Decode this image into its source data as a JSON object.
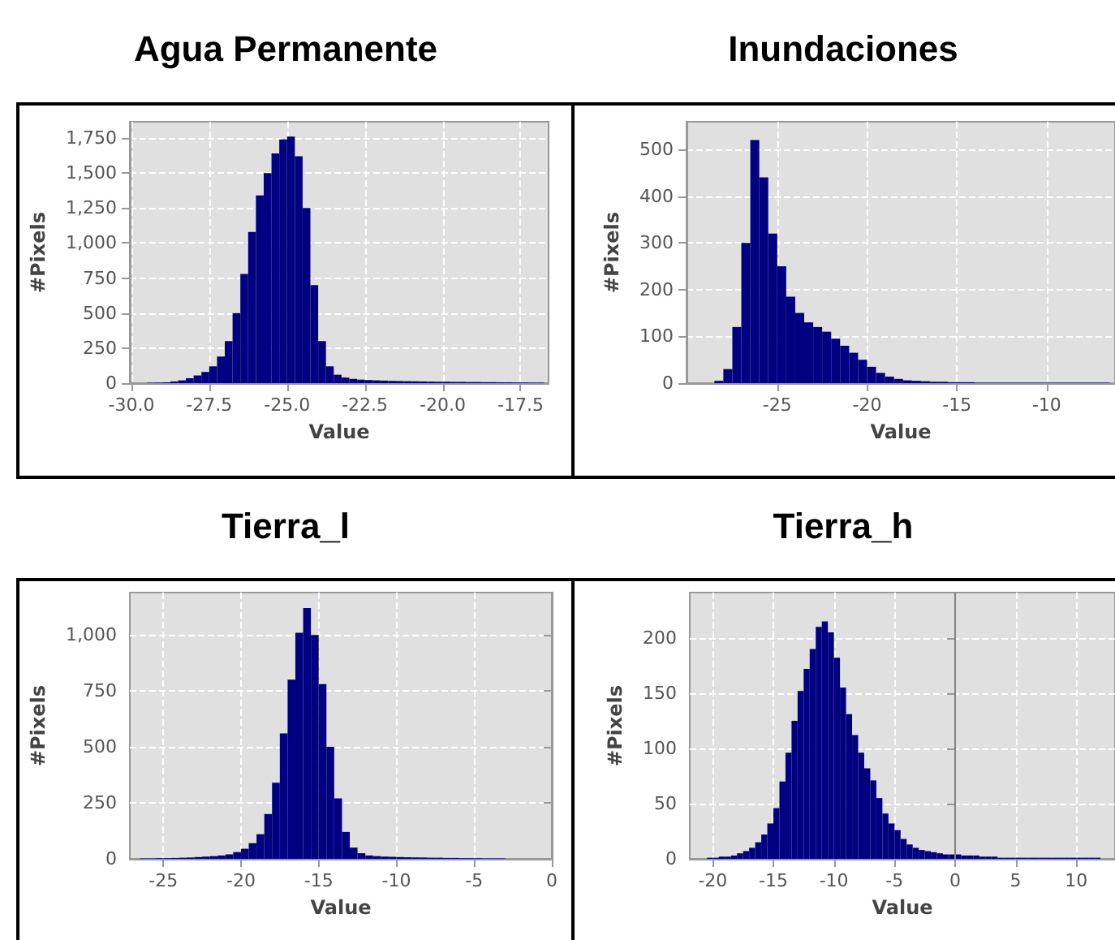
{
  "chart_data": [
    {
      "type": "histogram",
      "title": "Agua Permanente",
      "xlabel": "Value",
      "ylabel": "#Pixels",
      "color": "#000080",
      "grid": true,
      "xlim": [
        -30.05,
        -16.6
      ],
      "ylim": [
        0,
        1866
      ],
      "xticks": [
        {
          "value": -30,
          "label": "-30.0"
        },
        {
          "value": -27.5,
          "label": "-27.5"
        },
        {
          "value": -25,
          "label": "-25.0"
        },
        {
          "value": -22.5,
          "label": "-22.5"
        },
        {
          "value": -20,
          "label": "-20.0"
        },
        {
          "value": -17.5,
          "label": "-17.5"
        }
      ],
      "yticks": [
        0,
        250,
        500,
        750,
        {
          "value": 1000,
          "label": "1,000"
        },
        {
          "value": 1250,
          "label": "1,250"
        },
        {
          "value": 1500,
          "label": "1,500"
        },
        {
          "value": 1750,
          "label": "1,750"
        }
      ],
      "bins": [
        -29.5,
        -29.25,
        -29,
        -28.75,
        -28.5,
        -28.25,
        -28,
        -27.75,
        -27.5,
        -27.25,
        -27,
        -26.75,
        -26.5,
        -26.25,
        -26,
        -25.75,
        -25.5,
        -25.25,
        -25,
        -24.75,
        -24.5,
        -24.25,
        -24,
        -23.75,
        -23.5,
        -23.25,
        -23,
        -22.75,
        -22.5,
        -22.25,
        -22,
        -21.75,
        -21.5,
        -21.25,
        -21,
        -20.75,
        -20.5,
        -20.25,
        -20,
        -19.75,
        -19.5,
        -19.25,
        -19,
        -18.75,
        -18.5,
        -18.25,
        -18,
        -17.75,
        -17.5,
        -17.25,
        -17,
        -16.75
      ],
      "values": [
        3,
        4,
        6,
        12,
        20,
        35,
        55,
        80,
        120,
        190,
        300,
        500,
        780,
        1080,
        1340,
        1500,
        1640,
        1740,
        1760,
        1620,
        1250,
        700,
        300,
        120,
        60,
        40,
        30,
        25,
        22,
        20,
        18,
        16,
        15,
        14,
        13,
        12,
        11,
        10,
        10,
        9,
        9,
        8,
        8,
        7,
        7,
        6,
        6,
        5,
        5,
        4,
        4
      ]
    },
    {
      "type": "histogram",
      "title": "Inundaciones",
      "xlabel": "Value",
      "ylabel": "#Pixels",
      "color": "#000080",
      "grid": true,
      "xlim": [
        -30.05,
        -6.2
      ],
      "ylim": [
        0,
        559
      ],
      "xticks": [
        -25,
        -20,
        -15,
        -10
      ],
      "yticks": [
        0,
        100,
        200,
        300,
        400,
        500
      ],
      "bins": [
        -28.5,
        -28,
        -27.5,
        -27,
        -26.5,
        -26,
        -25.5,
        -25,
        -24.5,
        -24,
        -23.5,
        -23,
        -22.5,
        -22,
        -21.5,
        -21,
        -20.5,
        -20,
        -19.5,
        -19,
        -18.5,
        -18,
        -17.5,
        -17,
        -16.5,
        -16,
        -15.5,
        -15,
        -14.5,
        -14,
        -13.5,
        -13,
        -12.5,
        -12,
        -11.5,
        -11,
        -10.5,
        -10,
        -9.5,
        -9,
        -8.5,
        -8,
        -7.5,
        -7,
        -6.5
      ],
      "values": [
        5,
        30,
        120,
        300,
        520,
        440,
        320,
        250,
        185,
        150,
        130,
        120,
        110,
        95,
        80,
        65,
        50,
        35,
        22,
        14,
        9,
        6,
        5,
        4,
        3,
        3,
        2,
        2,
        2,
        1,
        1,
        1,
        1,
        1,
        1,
        1,
        1,
        1,
        1,
        1,
        1,
        1,
        1,
        1
      ]
    },
    {
      "type": "histogram",
      "title": "Tierra_l",
      "xlabel": "Value",
      "ylabel": "#Pixels",
      "color": "#000080",
      "grid": true,
      "xlim": [
        -27.15,
        0
      ],
      "ylim": [
        0,
        1189
      ],
      "xticks": [
        -25,
        -20,
        -15,
        -10,
        -5,
        0
      ],
      "yticks": [
        0,
        250,
        500,
        750,
        {
          "value": 1000,
          "label": "1,000"
        }
      ],
      "bins": [
        -26.5,
        -26,
        -25.5,
        -25,
        -24.5,
        -24,
        -23.5,
        -23,
        -22.5,
        -22,
        -21.5,
        -21,
        -20.5,
        -20,
        -19.5,
        -19,
        -18.5,
        -18,
        -17.5,
        -17,
        -16.5,
        -16,
        -15.5,
        -15,
        -14.5,
        -14,
        -13.5,
        -13,
        -12.5,
        -12,
        -11.5,
        -11,
        -10.5,
        -10,
        -9.5,
        -9,
        -8.5,
        -8,
        -7.5,
        -7,
        -6.5,
        -6,
        -5.5,
        -5,
        -4.5,
        -4,
        -3.5,
        -3,
        -2.5,
        -2,
        -1.5
      ],
      "values": [
        2,
        2,
        3,
        3,
        4,
        5,
        6,
        8,
        10,
        12,
        15,
        20,
        30,
        45,
        70,
        110,
        200,
        340,
        560,
        800,
        1010,
        1120,
        1000,
        780,
        500,
        270,
        120,
        50,
        25,
        15,
        12,
        10,
        9,
        8,
        7,
        6,
        6,
        5,
        5,
        4,
        4,
        3,
        3,
        3,
        2,
        2,
        2,
        null,
        null,
        null
      ]
    },
    {
      "type": "histogram",
      "title": "Tierra_h",
      "xlabel": "Value",
      "ylabel": "#Pixels",
      "color": "#000080",
      "grid": true,
      "xlim": [
        -21.9,
        13.2
      ],
      "ylim": [
        0,
        241
      ],
      "xticks": [
        -20,
        -15,
        -10,
        -5,
        0,
        5,
        10
      ],
      "yticks": [
        0,
        50,
        100,
        150,
        200
      ],
      "ref_lines": [
        {
          "axis": "x",
          "value": 0,
          "label": null,
          "color": "#808080"
        }
      ],
      "bins": [
        -20.5,
        -20,
        -19.5,
        -19,
        -18.5,
        -18,
        -17.5,
        -17,
        -16.5,
        -16,
        -15.5,
        -15,
        -14.5,
        -14,
        -13.5,
        -13,
        -12.5,
        -12,
        -11.5,
        -11,
        -10.5,
        -10,
        -9.5,
        -9,
        -8.5,
        -8,
        -7.5,
        -7,
        -6.5,
        -6,
        -5.5,
        -5,
        -4.5,
        -4,
        -3.5,
        -3,
        -2.5,
        -2,
        -1.5,
        -1,
        -0.5,
        0,
        0.5,
        1,
        1.5,
        2,
        2.5,
        3,
        3.5,
        4,
        4.5,
        5,
        5.5,
        6,
        6.5,
        7,
        7.5,
        8,
        8.5,
        9,
        9.5,
        10,
        10.5,
        11,
        11.5,
        12
      ],
      "values": [
        1,
        1,
        2,
        2,
        3,
        5,
        7,
        10,
        15,
        22,
        32,
        46,
        70,
        96,
        125,
        152,
        172,
        190,
        210,
        215,
        205,
        182,
        155,
        131,
        112,
        96,
        82,
        71,
        55,
        41,
        32,
        26,
        18,
        13,
        10,
        8,
        7,
        6,
        5,
        4,
        4,
        4,
        3,
        3,
        3,
        2,
        2,
        2,
        1,
        1,
        1,
        1,
        1,
        1,
        1,
        1,
        1,
        1,
        1,
        1,
        1,
        1,
        1,
        1,
        1
      ]
    }
  ]
}
